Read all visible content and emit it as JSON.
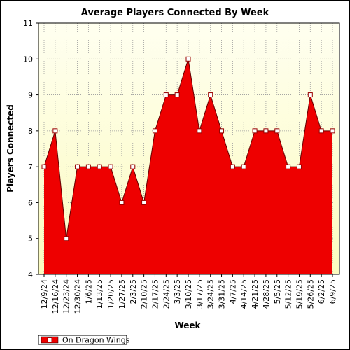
{
  "chart_data": {
    "type": "area",
    "title": "Average Players Connected By Week",
    "xlabel": "Week",
    "ylabel": "Players Connected",
    "ylim": [
      4,
      11
    ],
    "y_ticks": [
      "4",
      "5",
      "6",
      "7",
      "8",
      "9",
      "10",
      "11"
    ],
    "grid": true,
    "legend_position": "bottom-left",
    "categories": [
      "12/9/24",
      "12/16/24",
      "12/23/24",
      "12/30/24",
      "1/6/25",
      "1/13/25",
      "1/20/25",
      "1/27/25",
      "2/3/25",
      "2/10/25",
      "2/17/25",
      "2/24/25",
      "3/3/25",
      "3/10/25",
      "3/17/25",
      "3/24/25",
      "3/31/25",
      "4/7/25",
      "4/14/25",
      "4/21/25",
      "4/28/25",
      "5/5/25",
      "5/12/25",
      "5/19/25",
      "5/26/25",
      "6/2/25",
      "6/9/25"
    ],
    "series": [
      {
        "name": "On Dragon Wings",
        "color": "#ee0000",
        "values": [
          7,
          8,
          5,
          7,
          7,
          7,
          7,
          6,
          7,
          6,
          8,
          9,
          9,
          10,
          8,
          9,
          8,
          7,
          7,
          8,
          8,
          8,
          7,
          7,
          9,
          8,
          8
        ]
      }
    ],
    "colors": {
      "plot_background_top": "#fffff0",
      "plot_background_bottom": "#fbfbc0",
      "fill": "#ee0000",
      "line": "#660000",
      "marker_fill": "#ffffff",
      "marker_stroke": "#990000",
      "grid": "#9a9a9a"
    }
  }
}
